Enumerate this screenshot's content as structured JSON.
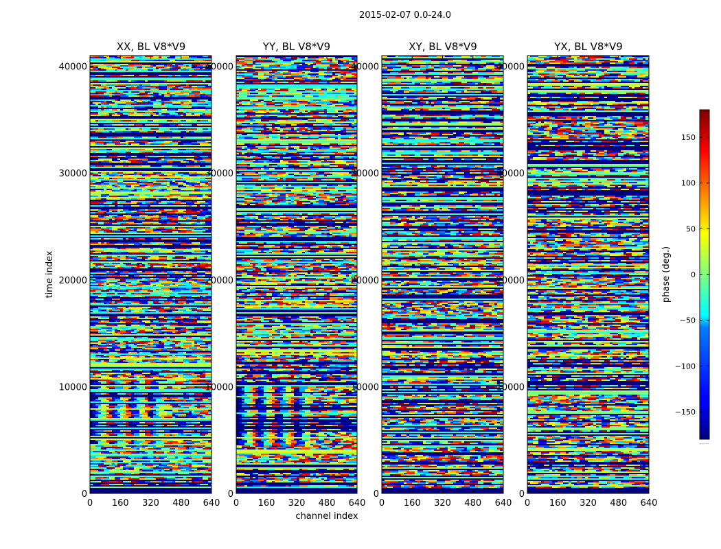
{
  "figure": {
    "suptitle": "2015-02-07 0.0-24.0"
  },
  "chart_data": {
    "type": "heatmap",
    "xlabel": "channel index",
    "ylabel": "time index",
    "xlim": [
      0,
      640
    ],
    "ylim": [
      0,
      41000
    ],
    "xticks": [
      "0",
      "160",
      "320",
      "480",
      "640"
    ],
    "yticks": [
      "0",
      "10000",
      "20000",
      "30000",
      "40000"
    ],
    "colormap": "jet",
    "colorbar": {
      "label": "phase (deg.)",
      "range": [
        -180,
        180
      ],
      "ticks": [
        "150",
        "100",
        "50",
        "0",
        "−50",
        "−100",
        "−150"
      ],
      "extra_label": "......"
    },
    "panels": [
      {
        "title": "XX, BL V8*V9"
      },
      {
        "title": "YY, BL V8*V9"
      },
      {
        "title": "XY, BL V8*V9"
      },
      {
        "title": "YX, BL V8*V9"
      }
    ]
  }
}
